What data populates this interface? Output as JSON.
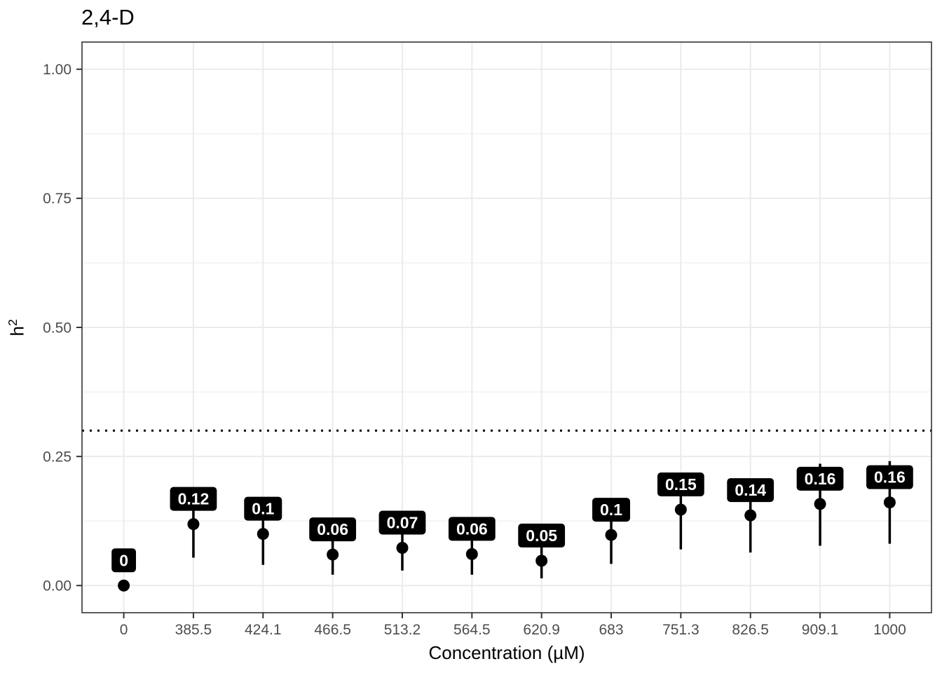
{
  "chart_data": {
    "type": "pointrange",
    "title": "2,4-D",
    "xlabel": "Concentration (µM)",
    "ylabel": "h²",
    "categories": [
      "0",
      "385.5",
      "424.1",
      "466.5",
      "513.2",
      "564.5",
      "620.9",
      "683",
      "751.3",
      "826.5",
      "909.1",
      "1000"
    ],
    "values": [
      0,
      0.119,
      0.1,
      0.06,
      0.073,
      0.061,
      0.048,
      0.098,
      0.147,
      0.136,
      0.158,
      0.161
    ],
    "point_labels": [
      "0",
      "0.12",
      "0.1",
      "0.06",
      "0.07",
      "0.06",
      "0.05",
      "0.1",
      "0.15",
      "0.14",
      "0.16",
      "0.16"
    ],
    "lower": [
      0,
      0.054,
      0.04,
      0.021,
      0.029,
      0.021,
      0.014,
      0.042,
      0.07,
      0.064,
      0.077,
      0.081
    ],
    "upper": [
      0.003,
      0.185,
      0.16,
      0.1,
      0.11,
      0.1,
      0.085,
      0.155,
      0.21,
      0.2,
      0.236,
      0.241
    ],
    "ytick_labels": [
      "0.00",
      "0.25",
      "0.50",
      "0.75",
      "1.00"
    ],
    "ytick_values": [
      0,
      0.25,
      0.5,
      0.75,
      1.0
    ],
    "yminor_values": [
      0.125,
      0.375,
      0.625,
      0.875
    ],
    "ylim": [
      -0.0526,
      1.0526
    ],
    "reference_line": {
      "y": 0.3,
      "style": "dotted",
      "color": "#000000"
    },
    "grid": {
      "major_on": true,
      "minor_on": true,
      "legend": "none"
    },
    "colors": {
      "background": "#ffffff",
      "panel_border": "#333333",
      "grid_major": "#ebebeb",
      "grid_minor": "#f1f1f1",
      "axis_text": "#4d4d4d",
      "tick_mark": "#333333",
      "point": "#000000",
      "errorbar": "#000000",
      "label_bg": "#000000",
      "label_text": "#ffffff"
    }
  },
  "axis_titles": {
    "y_base": "h",
    "y_exp": "2"
  }
}
